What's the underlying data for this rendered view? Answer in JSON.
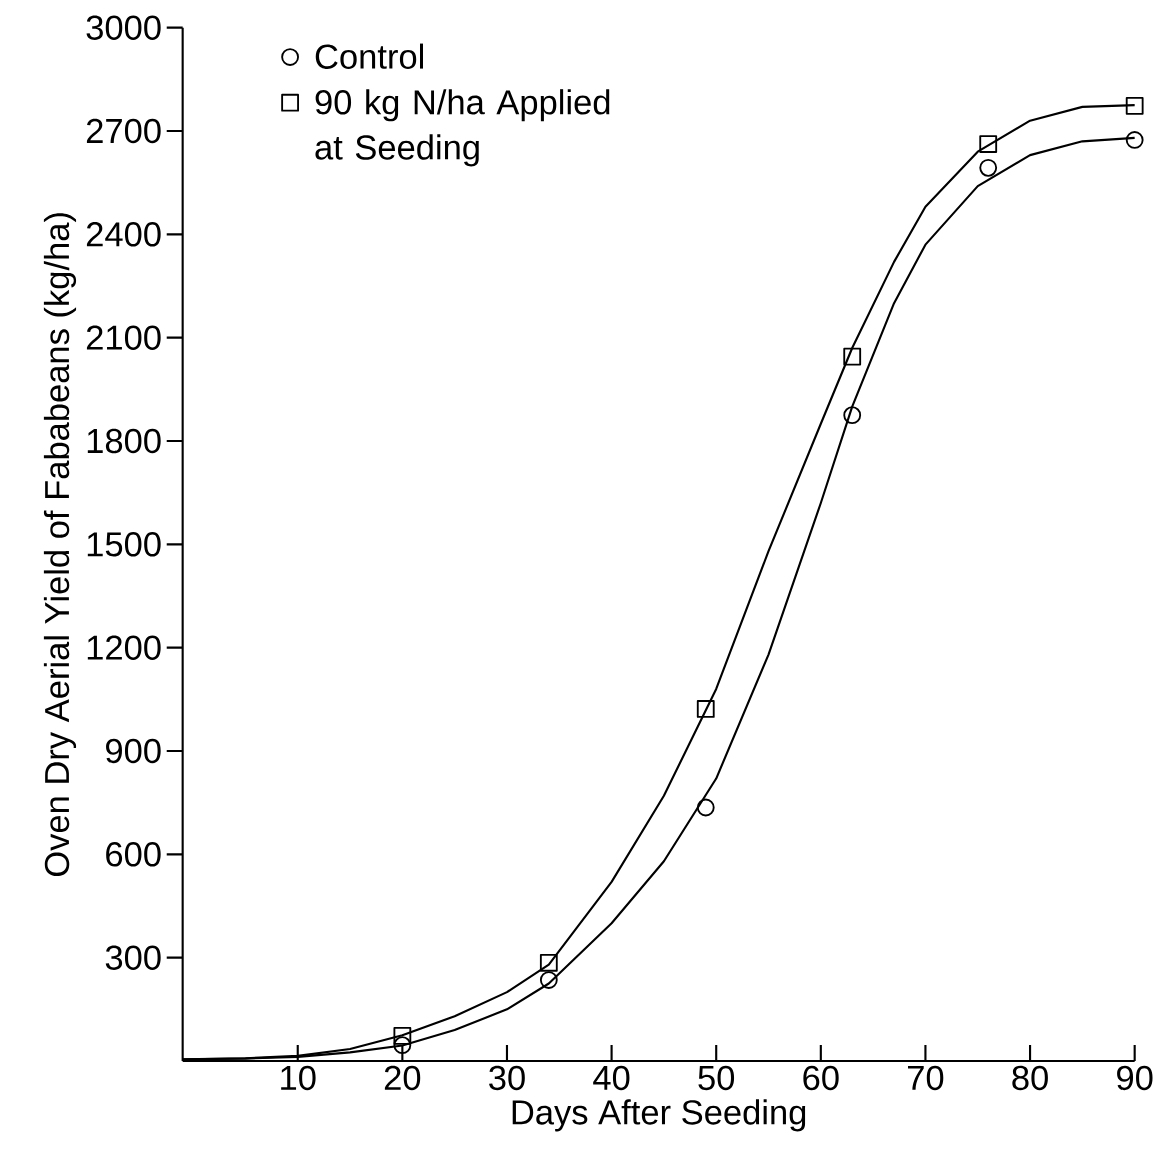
{
  "chart_data": {
    "type": "scatter",
    "xlabel": "Days After Seeding",
    "ylabel": "Oven Dry Aerial Yield of Fababeans (kg/ha)",
    "xlim": [
      -1,
      90
    ],
    "ylim": [
      0,
      3000
    ],
    "xticks": [
      10,
      20,
      30,
      40,
      50,
      60,
      70,
      80,
      90
    ],
    "yticks": [
      300,
      600,
      900,
      1200,
      1500,
      1800,
      2100,
      2400,
      2700,
      3000
    ],
    "legend": "top left",
    "series": [
      {
        "type": "line",
        "marker": "none",
        "color": "#000000",
        "x": [
          -1,
          5,
          10,
          15,
          20,
          25,
          30,
          34,
          40,
          45,
          50,
          55,
          60,
          63,
          67,
          70,
          75,
          80,
          85,
          90
        ],
        "values": [
          5,
          7,
          12,
          25,
          45,
          90,
          150,
          225,
          400,
          580,
          820,
          1180,
          1620,
          1900,
          2200,
          2370,
          2540,
          2630,
          2670,
          2680
        ]
      },
      {
        "type": "line",
        "marker": "none",
        "color": "#000000",
        "x": [
          -1,
          5,
          10,
          15,
          20,
          25,
          30,
          34,
          40,
          45,
          50,
          55,
          60,
          63,
          67,
          70,
          75,
          80,
          85,
          90
        ],
        "values": [
          5,
          8,
          15,
          35,
          75,
          130,
          200,
          280,
          520,
          770,
          1080,
          1480,
          1850,
          2070,
          2320,
          2480,
          2640,
          2730,
          2770,
          2775
        ]
      },
      {
        "name": "Control",
        "type": "scatter",
        "marker": "circle",
        "color": "#000000",
        "x": [
          20,
          34,
          49,
          63,
          76,
          90
        ],
        "values": [
          46,
          235,
          736,
          1875,
          2593,
          2674
        ]
      },
      {
        "name": "90 kg N/ha Applied at Seeding",
        "type": "scatter",
        "marker": "square",
        "color": "#000000",
        "x": [
          20,
          34,
          49,
          63,
          76,
          90
        ],
        "values": [
          73,
          285,
          1022,
          2045,
          2662,
          2773
        ]
      }
    ]
  }
}
